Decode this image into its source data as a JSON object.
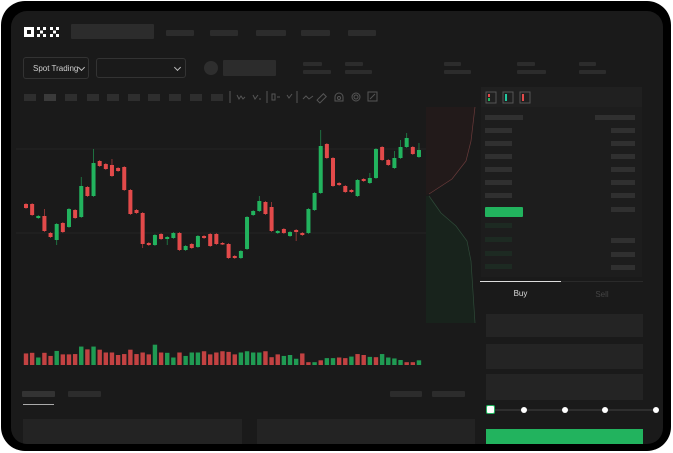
{
  "brand": {
    "logo": "OKX",
    "accent": "#22b35e",
    "down": "#e24a4a"
  },
  "toolbar": {
    "market_select": "Spot Trading",
    "pair_select": ""
  },
  "chart_icons": [
    "indicator-icon",
    "indicator-alt-icon",
    "timeframe-icon",
    "chevron-icon",
    "line-icon",
    "ruler-icon",
    "camera-icon",
    "settings-icon",
    "fullscreen-icon"
  ],
  "orderbook": {
    "view_icons": [
      "both-sides-icon",
      "bids-icon",
      "asks-icon"
    ]
  },
  "trade_form": {
    "tabs": [
      {
        "label": "Buy",
        "active": true
      },
      {
        "label": "Sell",
        "active": false
      }
    ],
    "slider_percent": 0,
    "slider_steps": [
      0,
      25,
      50,
      75,
      100
    ]
  },
  "chart_data": {
    "type": "candlestick",
    "title": "",
    "xlabel": "",
    "ylabel": "",
    "colors": {
      "up": "#22b35e",
      "down": "#e24a4a"
    },
    "grid": true,
    "candles": [
      [
        97,
        98,
        92,
        93
      ],
      [
        97,
        98,
        85,
        86
      ],
      [
        83,
        86,
        82,
        85
      ],
      [
        85,
        92,
        69,
        70
      ],
      [
        68,
        69,
        63,
        64
      ],
      [
        61,
        78,
        56,
        77
      ],
      [
        78,
        79,
        68,
        69
      ],
      [
        74,
        93,
        73,
        92
      ],
      [
        91,
        92,
        82,
        83
      ],
      [
        84,
        124,
        83,
        115
      ],
      [
        114,
        115,
        104,
        105
      ],
      [
        105,
        152,
        104,
        138
      ],
      [
        140,
        141,
        134,
        135
      ],
      [
        137,
        138,
        131,
        132
      ],
      [
        136,
        142,
        124,
        125
      ],
      [
        133,
        134,
        129,
        130
      ],
      [
        134,
        135,
        110,
        111
      ],
      [
        111,
        112,
        86,
        87
      ],
      [
        91,
        92,
        87,
        88
      ],
      [
        88,
        89,
        53,
        57
      ],
      [
        58,
        59,
        55,
        56
      ],
      [
        56,
        67,
        55,
        66
      ],
      [
        67,
        68,
        61,
        62
      ],
      [
        62,
        65,
        56,
        64
      ],
      [
        63,
        69,
        62,
        68
      ],
      [
        68,
        69,
        50,
        51
      ],
      [
        51,
        56,
        50,
        55
      ],
      [
        57,
        58,
        52,
        53
      ],
      [
        54,
        66,
        53,
        65
      ],
      [
        65,
        66,
        62,
        63
      ],
      [
        67,
        68,
        54,
        55
      ],
      [
        67,
        68,
        56,
        57
      ],
      [
        58,
        59,
        56,
        57
      ],
      [
        57,
        58,
        42,
        43
      ],
      [
        45,
        46,
        42,
        43
      ],
      [
        43,
        51,
        42,
        50
      ],
      [
        52,
        85,
        51,
        84
      ],
      [
        86,
        91,
        85,
        90
      ],
      [
        90,
        105,
        89,
        100
      ],
      [
        99,
        100,
        86,
        87
      ],
      [
        94,
        99,
        69,
        70
      ],
      [
        68,
        71,
        67,
        70
      ],
      [
        72,
        73,
        67,
        68
      ],
      [
        65,
        70,
        64,
        69
      ],
      [
        71,
        72,
        60,
        69
      ],
      [
        68,
        69,
        65,
        66
      ],
      [
        68,
        93,
        67,
        92
      ],
      [
        91,
        109,
        90,
        108
      ],
      [
        108,
        171,
        107,
        155
      ],
      [
        157,
        158,
        142,
        143
      ],
      [
        143,
        144,
        114,
        115
      ],
      [
        118,
        119,
        115,
        116
      ],
      [
        115,
        116,
        108,
        109
      ],
      [
        111,
        112,
        108,
        109
      ],
      [
        105,
        122,
        104,
        121
      ],
      [
        122,
        123,
        119,
        120
      ],
      [
        118,
        128,
        117,
        123
      ],
      [
        123,
        153,
        122,
        152
      ],
      [
        154,
        155,
        140,
        141
      ],
      [
        141,
        142,
        135,
        136
      ],
      [
        133,
        150,
        132,
        143
      ],
      [
        143,
        161,
        142,
        154
      ],
      [
        154,
        168,
        153,
        163
      ],
      [
        154,
        155,
        146,
        147
      ],
      [
        144,
        158,
        143,
        151
      ]
    ],
    "candle_format": [
      "open",
      "high",
      "low",
      "close"
    ],
    "volume": [
      [
        "down",
        37
      ],
      [
        "down",
        39
      ],
      [
        "up",
        24
      ],
      [
        "down",
        39
      ],
      [
        "down",
        29
      ],
      [
        "up",
        45
      ],
      [
        "down",
        34
      ],
      [
        "down",
        34
      ],
      [
        "down",
        35
      ],
      [
        "up",
        59
      ],
      [
        "down",
        50
      ],
      [
        "up",
        59
      ],
      [
        "down",
        49
      ],
      [
        "down",
        40
      ],
      [
        "down",
        40
      ],
      [
        "down",
        32
      ],
      [
        "down",
        35
      ],
      [
        "down",
        49
      ],
      [
        "down",
        35
      ],
      [
        "down",
        40
      ],
      [
        "down",
        34
      ],
      [
        "up",
        65
      ],
      [
        "down",
        40
      ],
      [
        "up",
        39
      ],
      [
        "up",
        24
      ],
      [
        "down",
        40
      ],
      [
        "up",
        29
      ],
      [
        "up",
        40
      ],
      [
        "up",
        40
      ],
      [
        "down",
        44
      ],
      [
        "down",
        34
      ],
      [
        "down",
        40
      ],
      [
        "down",
        44
      ],
      [
        "down",
        42
      ],
      [
        "down",
        34
      ],
      [
        "up",
        40
      ],
      [
        "up",
        44
      ],
      [
        "up",
        40
      ],
      [
        "up",
        40
      ],
      [
        "down",
        44
      ],
      [
        "down",
        25
      ],
      [
        "down",
        34
      ],
      [
        "up",
        29
      ],
      [
        "up",
        32
      ],
      [
        "up",
        20
      ],
      [
        "down",
        37
      ],
      [
        "down",
        9
      ],
      [
        "up",
        9
      ],
      [
        "down",
        15
      ],
      [
        "up",
        22
      ],
      [
        "up",
        22
      ],
      [
        "down",
        24
      ],
      [
        "down",
        22
      ],
      [
        "up",
        27
      ],
      [
        "down",
        35
      ],
      [
        "down",
        32
      ],
      [
        "up",
        26
      ],
      [
        "down",
        25
      ],
      [
        "up",
        35
      ],
      [
        "up",
        24
      ],
      [
        "up",
        21
      ],
      [
        "up",
        16
      ],
      [
        "down",
        9
      ],
      [
        "down",
        9
      ],
      [
        "up",
        15
      ]
    ]
  }
}
